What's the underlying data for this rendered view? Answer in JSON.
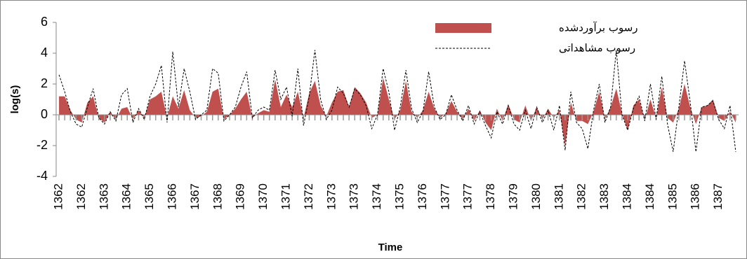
{
  "chart_data": {
    "type": "area-line",
    "x_label": "Time",
    "y_label": "log(s)",
    "categories": [
      "1362",
      null,
      null,
      null,
      "1362",
      null,
      null,
      null,
      "1363",
      null,
      null,
      null,
      "1364",
      null,
      null,
      null,
      "1365",
      null,
      null,
      null,
      "1366",
      null,
      null,
      null,
      "1367",
      null,
      null,
      null,
      "1368",
      null,
      null,
      null,
      "1369",
      null,
      null,
      null,
      "1370",
      null,
      null,
      null,
      "1371",
      null,
      null,
      null,
      "1372",
      null,
      null,
      null,
      "1373",
      null,
      null,
      null,
      "1373",
      null,
      null,
      null,
      "1374",
      null,
      null,
      null,
      "1375",
      null,
      null,
      null,
      "1376",
      null,
      null,
      null,
      "1377",
      null,
      null,
      null,
      "1377",
      null,
      null,
      null,
      "1378",
      null,
      null,
      null,
      "1379",
      null,
      null,
      null,
      "1380",
      null,
      null,
      null,
      "1381",
      null,
      null,
      null,
      "1382",
      null,
      null,
      null,
      "1383",
      null,
      null,
      null,
      "1384",
      null,
      null,
      null,
      "1384",
      null,
      null,
      null,
      "1385",
      null,
      null,
      null,
      "1386",
      null,
      null,
      null,
      "1387",
      null,
      null,
      null
    ],
    "series": [
      {
        "name": "رسوب برآوردشده",
        "color": "#c0504d",
        "style": "area",
        "values": [
          1.2,
          1.2,
          0.3,
          -0.3,
          -0.5,
          0.8,
          1.2,
          -0.2,
          -0.5,
          0.2,
          -0.3,
          0.4,
          0.5,
          -0.3,
          0.3,
          -0.2,
          1.0,
          1.2,
          1.5,
          -0.2,
          1.2,
          0.4,
          1.6,
          0.3,
          -0.2,
          -0.1,
          0.2,
          1.5,
          1.7,
          -0.3,
          0.0,
          0.4,
          1.0,
          1.5,
          -0.2,
          0.1,
          0.3,
          0.2,
          2.3,
          0.5,
          1.3,
          0.5,
          1.5,
          -0.2,
          1.4,
          2.2,
          0.6,
          -0.1,
          0.8,
          1.5,
          1.6,
          0.5,
          1.8,
          1.4,
          0.8,
          -0.2,
          0.0,
          2.4,
          1.0,
          -0.3,
          0.3,
          2.2,
          0.2,
          -0.2,
          0.3,
          1.5,
          0.4,
          -0.2,
          0.1,
          0.9,
          0.2,
          -0.3,
          0.4,
          -0.4,
          0.3,
          -0.5,
          -1.0,
          0.4,
          -0.4,
          0.7,
          -0.3,
          -0.5,
          0.6,
          -0.4,
          0.5,
          -0.3,
          0.4,
          -0.2,
          0.3,
          -2.0,
          0.8,
          -0.4,
          -0.4,
          -0.6,
          0.2,
          1.5,
          -0.3,
          0.5,
          1.7,
          0.1,
          -1.0,
          0.6,
          1.0,
          -0.3,
          1.0,
          -0.2,
          1.8,
          -0.2,
          -0.5,
          0.4,
          2.0,
          0.5,
          -0.6,
          0.5,
          0.6,
          1.0,
          -0.2,
          -0.4,
          0.2,
          -0.5
        ]
      },
      {
        "name": "رسوب مشاهداتی",
        "color": "#000000",
        "style": "dashed",
        "values": [
          2.6,
          1.5,
          0.2,
          -0.6,
          -0.8,
          0.5,
          1.7,
          -0.2,
          -0.6,
          0.2,
          -0.4,
          1.3,
          1.7,
          -0.5,
          0.4,
          -0.3,
          1.2,
          2.0,
          3.2,
          -0.5,
          4.1,
          0.5,
          3.0,
          1.5,
          -0.3,
          0.0,
          0.3,
          3.0,
          2.7,
          -0.4,
          0.0,
          0.5,
          1.8,
          2.8,
          -0.2,
          0.3,
          0.5,
          0.3,
          2.9,
          1.0,
          1.8,
          -0.1,
          3.0,
          -0.7,
          1.2,
          4.2,
          1.0,
          -0.3,
          0.3,
          1.8,
          1.4,
          0.5,
          1.7,
          1.3,
          0.6,
          -0.9,
          0.0,
          3.0,
          1.5,
          -1.0,
          0.5,
          2.9,
          0.4,
          -0.5,
          0.2,
          2.8,
          0.5,
          -0.3,
          0.0,
          1.3,
          0.3,
          -0.4,
          0.6,
          -0.6,
          0.2,
          -0.7,
          -1.5,
          0.2,
          -0.6,
          0.6,
          -0.6,
          -1.0,
          0.3,
          -0.9,
          0.5,
          -0.5,
          0.3,
          -1.0,
          0.6,
          -2.3,
          1.5,
          -0.5,
          -0.9,
          -2.2,
          0.3,
          2.0,
          -0.5,
          0.5,
          4.2,
          0.0,
          -1.0,
          0.4,
          1.2,
          -0.4,
          2.0,
          -0.3,
          2.5,
          -0.6,
          -2.4,
          0.5,
          3.5,
          0.8,
          -2.4,
          0.5,
          0.6,
          0.9,
          -0.3,
          -0.9,
          0.6,
          -2.4
        ]
      }
    ],
    "ylim": [
      -4,
      6
    ],
    "yticks": [
      -4,
      -2,
      0,
      2,
      4,
      6
    ]
  }
}
